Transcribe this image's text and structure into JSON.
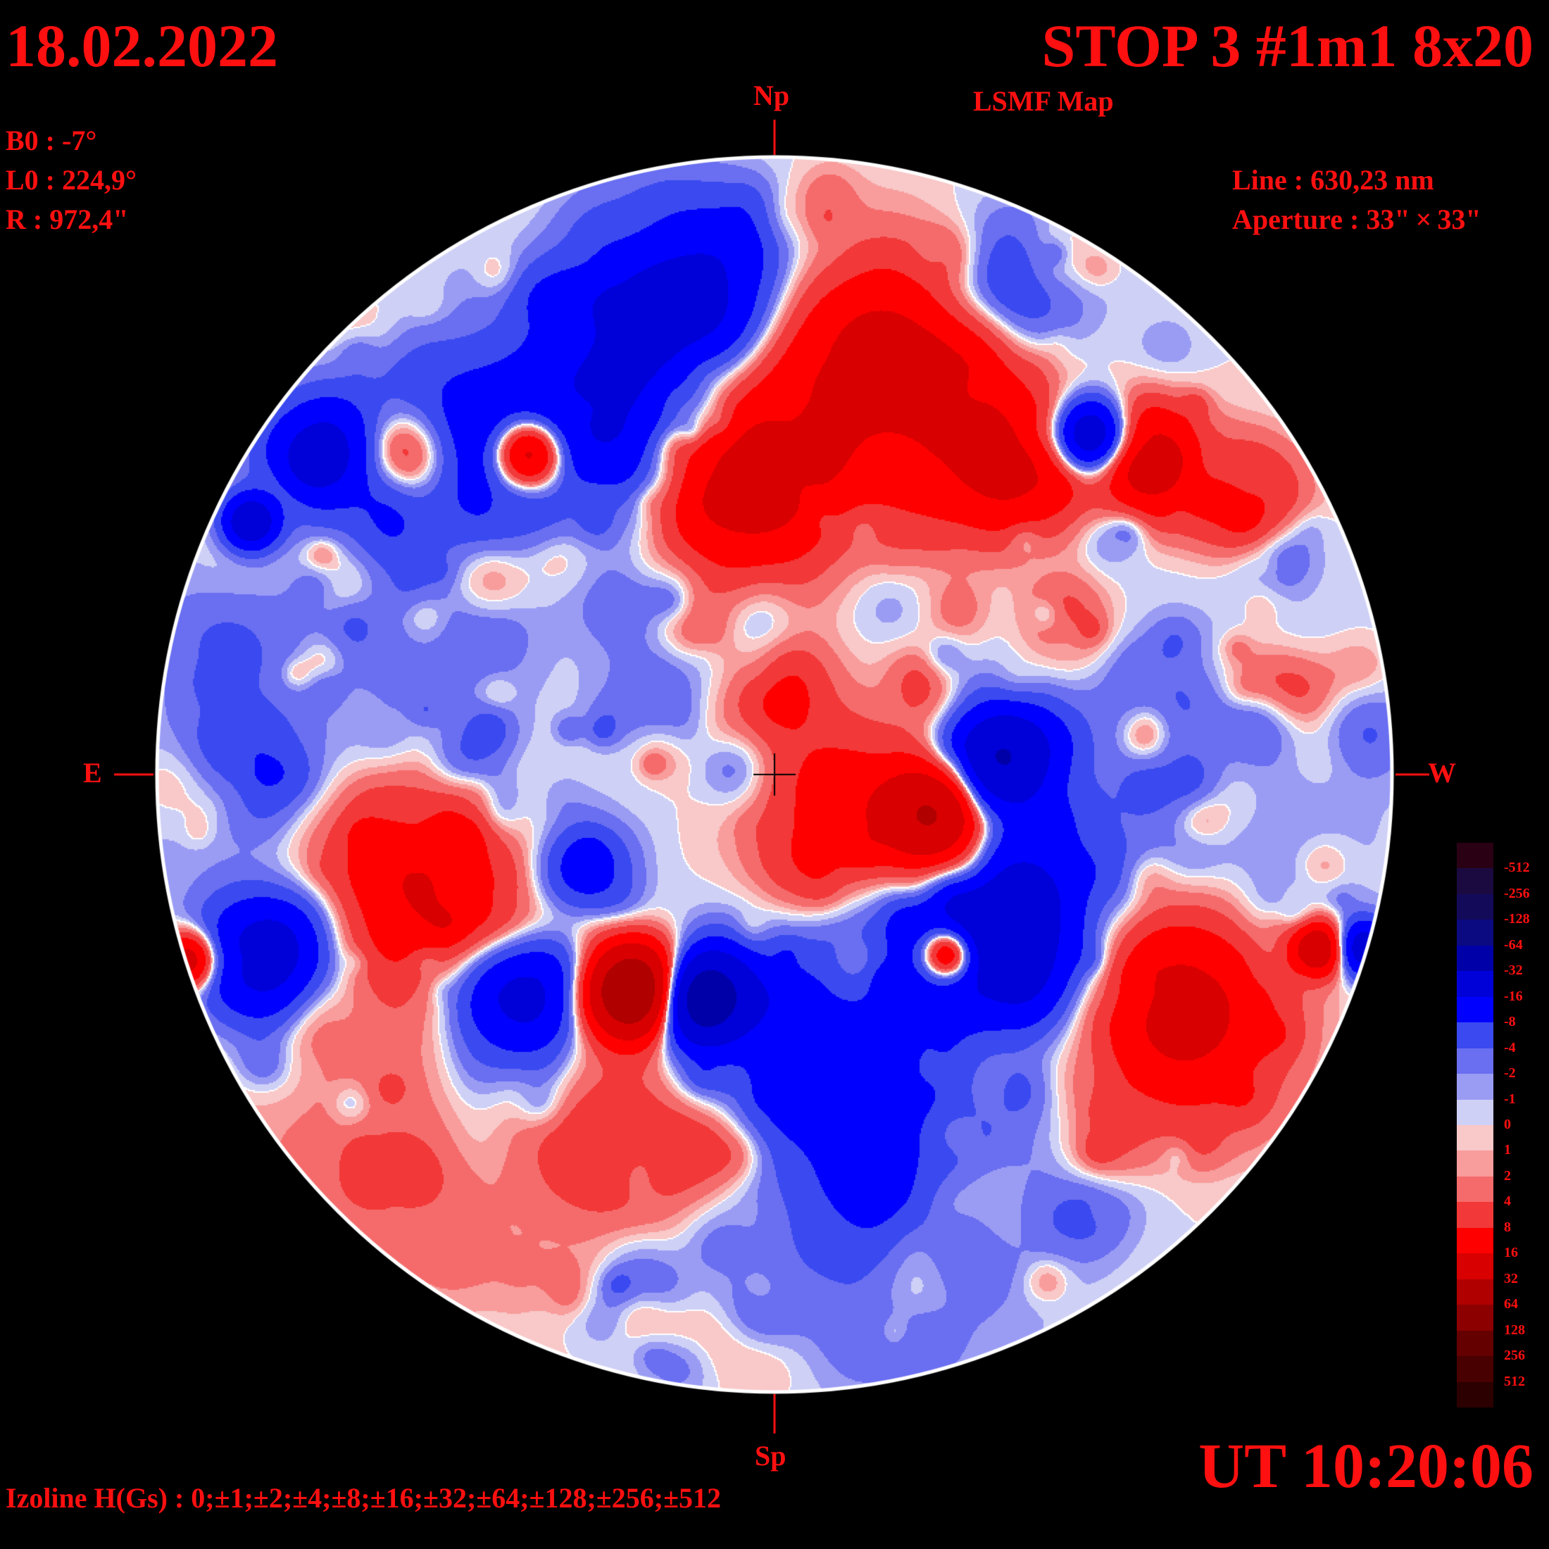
{
  "header": {
    "date": "18.02.2022",
    "title": "STOP 3 #1m1 8x20",
    "subtitle": "LSMF  Map"
  },
  "params": {
    "b0": "B0 : -7°",
    "l0": "L0 : 224,9°",
    "r": "R  : 972,4\"",
    "line": "Line :  630,23 nm",
    "aperture": "Aperture : 33\" × 33\""
  },
  "directions": {
    "north": "Np",
    "south": "Sp",
    "east": "E",
    "west": "W"
  },
  "footer": {
    "time": "UT 10:20:06",
    "izoline": "Izoline H(Gs) : 0;±1;±2;±4;±8;±16;±32;±64;±128;±256;±512"
  },
  "colors": {
    "background": "#000000",
    "text": "#ff1010",
    "contour": "#ffffff",
    "scale": [
      "#2a0014",
      "#1a0a40",
      "#140a5a",
      "#0c0a80",
      "#0000a8",
      "#0000d8",
      "#0000ff",
      "#3a4af0",
      "#6a6ef0",
      "#9a9cf4",
      "#cfd0f6",
      "#f9c8c8",
      "#f89c9c",
      "#f56b6b",
      "#f23838",
      "#ff0000",
      "#d80000",
      "#b00000",
      "#8c0000",
      "#640000",
      "#480000",
      "#2c0000"
    ]
  },
  "colorbar": {
    "labels": [
      "-512",
      "-256",
      "-128",
      "-64",
      "-32",
      "-16",
      "-8",
      "-4",
      "-2",
      "-1",
      "0",
      "1",
      "2",
      "4",
      "8",
      "16",
      "32",
      "64",
      "128",
      "256",
      "512"
    ]
  },
  "map": {
    "type": "magnetic field contour map",
    "units": "Gs",
    "levels": [
      -512,
      -256,
      -128,
      -64,
      -32,
      -16,
      -8,
      -4,
      -2,
      -1,
      0,
      1,
      2,
      4,
      8,
      16,
      32,
      64,
      128,
      256,
      512
    ],
    "regions": [
      {
        "pol": -1,
        "lat": 0.57,
        "lon": -0.28,
        "s": 0.12,
        "a": 18
      },
      {
        "pol": -1,
        "lat": 0.78,
        "lon": -0.15,
        "s": 0.1,
        "a": 22
      },
      {
        "pol": -1,
        "lat": 0.52,
        "lon": -0.55,
        "s": 0.1,
        "a": 16
      },
      {
        "pol": -1,
        "lat": 0.52,
        "lon": -0.73,
        "s": 0.06,
        "a": 20
      },
      {
        "pol": -1,
        "lat": 0.41,
        "lon": -0.85,
        "s": 0.03,
        "a": 28
      },
      {
        "pol": 1,
        "lat": 0.52,
        "lon": -0.4,
        "s": 0.04,
        "a": 30
      },
      {
        "pol": 1,
        "lat": 0.52,
        "lon": -0.6,
        "s": 0.06,
        "a": 20
      },
      {
        "pol": 1,
        "lat": 0.48,
        "lon": -0.05,
        "s": 0.11,
        "a": 22
      },
      {
        "pol": 1,
        "lat": 0.65,
        "lon": 0.18,
        "s": 0.12,
        "a": 24
      },
      {
        "pol": 1,
        "lat": 0.5,
        "lon": 0.38,
        "s": 0.08,
        "a": 18
      },
      {
        "pol": -1,
        "lat": 0.55,
        "lon": 0.51,
        "s": 0.04,
        "a": 30
      },
      {
        "pol": 1,
        "lat": 0.5,
        "lon": 0.61,
        "s": 0.06,
        "a": 20
      },
      {
        "pol": 1,
        "lat": 0.45,
        "lon": 0.76,
        "s": 0.06,
        "a": 14
      },
      {
        "pol": -1,
        "lat": 0.79,
        "lon": 0.38,
        "s": 0.08,
        "a": 10
      },
      {
        "pol": -1,
        "lat": 0.03,
        "lon": 0.36,
        "s": 0.06,
        "a": 34
      },
      {
        "pol": 1,
        "lat": -0.07,
        "lon": 0.26,
        "s": 0.06,
        "a": 34
      },
      {
        "pol": 1,
        "lat": -0.05,
        "lon": 0.1,
        "s": 0.1,
        "a": 12
      },
      {
        "pol": -1,
        "lat": -0.24,
        "lon": 0.37,
        "s": 0.1,
        "a": 26
      },
      {
        "pol": 1,
        "lat": -0.29,
        "lon": 0.28,
        "s": 0.03,
        "a": 30
      },
      {
        "pol": -1,
        "lat": -0.36,
        "lon": -0.12,
        "s": 0.05,
        "a": 48
      },
      {
        "pol": 1,
        "lat": -0.35,
        "lon": -0.23,
        "s": 0.05,
        "a": 60
      },
      {
        "pol": -1,
        "lat": -0.36,
        "lon": -0.42,
        "s": 0.07,
        "a": 22
      },
      {
        "pol": 1,
        "lat": -0.18,
        "lon": -0.57,
        "s": 0.12,
        "a": 18
      },
      {
        "pol": -1,
        "lat": -0.3,
        "lon": -0.81,
        "s": 0.07,
        "a": 20
      },
      {
        "pol": 1,
        "lat": -0.3,
        "lon": -0.95,
        "s": 0.03,
        "a": 24
      },
      {
        "pol": -1,
        "lat": -0.45,
        "lon": 0.1,
        "s": 0.14,
        "a": 12
      },
      {
        "pol": -1,
        "lat": -0.15,
        "lon": -0.31,
        "s": 0.05,
        "a": 12
      },
      {
        "pol": 1,
        "lat": -0.38,
        "lon": 0.66,
        "s": 0.11,
        "a": 22
      },
      {
        "pol": 1,
        "lat": -0.28,
        "lon": 0.88,
        "s": 0.03,
        "a": 28
      },
      {
        "pol": -1,
        "lat": -0.28,
        "lon": 0.95,
        "s": 0.03,
        "a": 24
      },
      {
        "pol": 1,
        "lat": -0.6,
        "lon": -0.24,
        "s": 0.1,
        "a": 8
      },
      {
        "pol": -1,
        "lat": -0.7,
        "lon": 0.18,
        "s": 0.18,
        "a": 5
      },
      {
        "pol": -1,
        "lat": 0.1,
        "lon": -0.75,
        "s": 0.25,
        "a": 3
      },
      {
        "pol": -1,
        "lat": -0.08,
        "lon": 0.65,
        "s": 0.22,
        "a": 3
      },
      {
        "pol": 1,
        "lat": -0.62,
        "lon": -0.65,
        "s": 0.18,
        "a": 3
      }
    ]
  }
}
